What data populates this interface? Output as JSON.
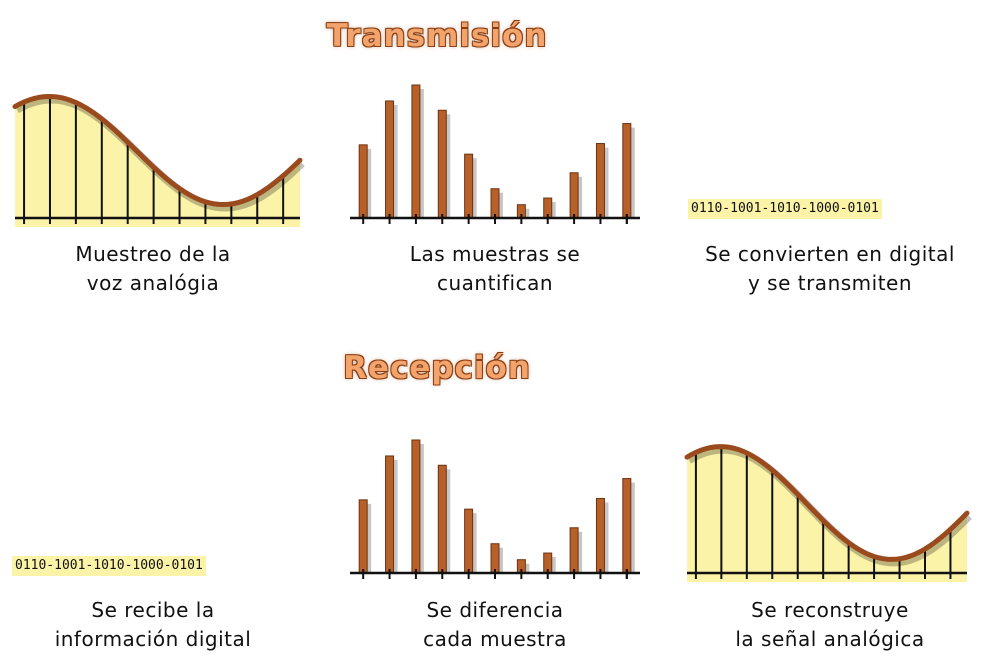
{
  "transmission": {
    "title": "Transmisión",
    "captions": [
      [
        "Muestreo de la",
        "voz analógia"
      ],
      [
        "Las muestras se",
        "cuantifican"
      ],
      [
        "Se convierten en digital",
        "y se transmiten"
      ]
    ],
    "binary": "0110-1001-1010-1000-0101"
  },
  "reception": {
    "title": "Recepción",
    "captions": [
      [
        "Se recibe la",
        "información digital"
      ],
      [
        "Se diferencia",
        "cada muestra"
      ],
      [
        "Se reconstruye",
        "la señal analógica"
      ]
    ],
    "binary": "0110-1001-1010-1000-0101"
  },
  "colors": {
    "fill": "#fbf3a8",
    "curve": "#9a4a1c",
    "bar": "#b8602a",
    "axis": "#111111"
  },
  "chart_data": {
    "type": "bar",
    "quantized_samples_top": [
      0.55,
      0.88,
      1.0,
      0.81,
      0.48,
      0.22,
      0.1,
      0.15,
      0.34,
      0.56,
      0.71
    ],
    "quantized_samples_bottom": [
      0.55,
      0.88,
      1.0,
      0.81,
      0.48,
      0.22,
      0.1,
      0.15,
      0.34,
      0.56,
      0.71
    ]
  }
}
